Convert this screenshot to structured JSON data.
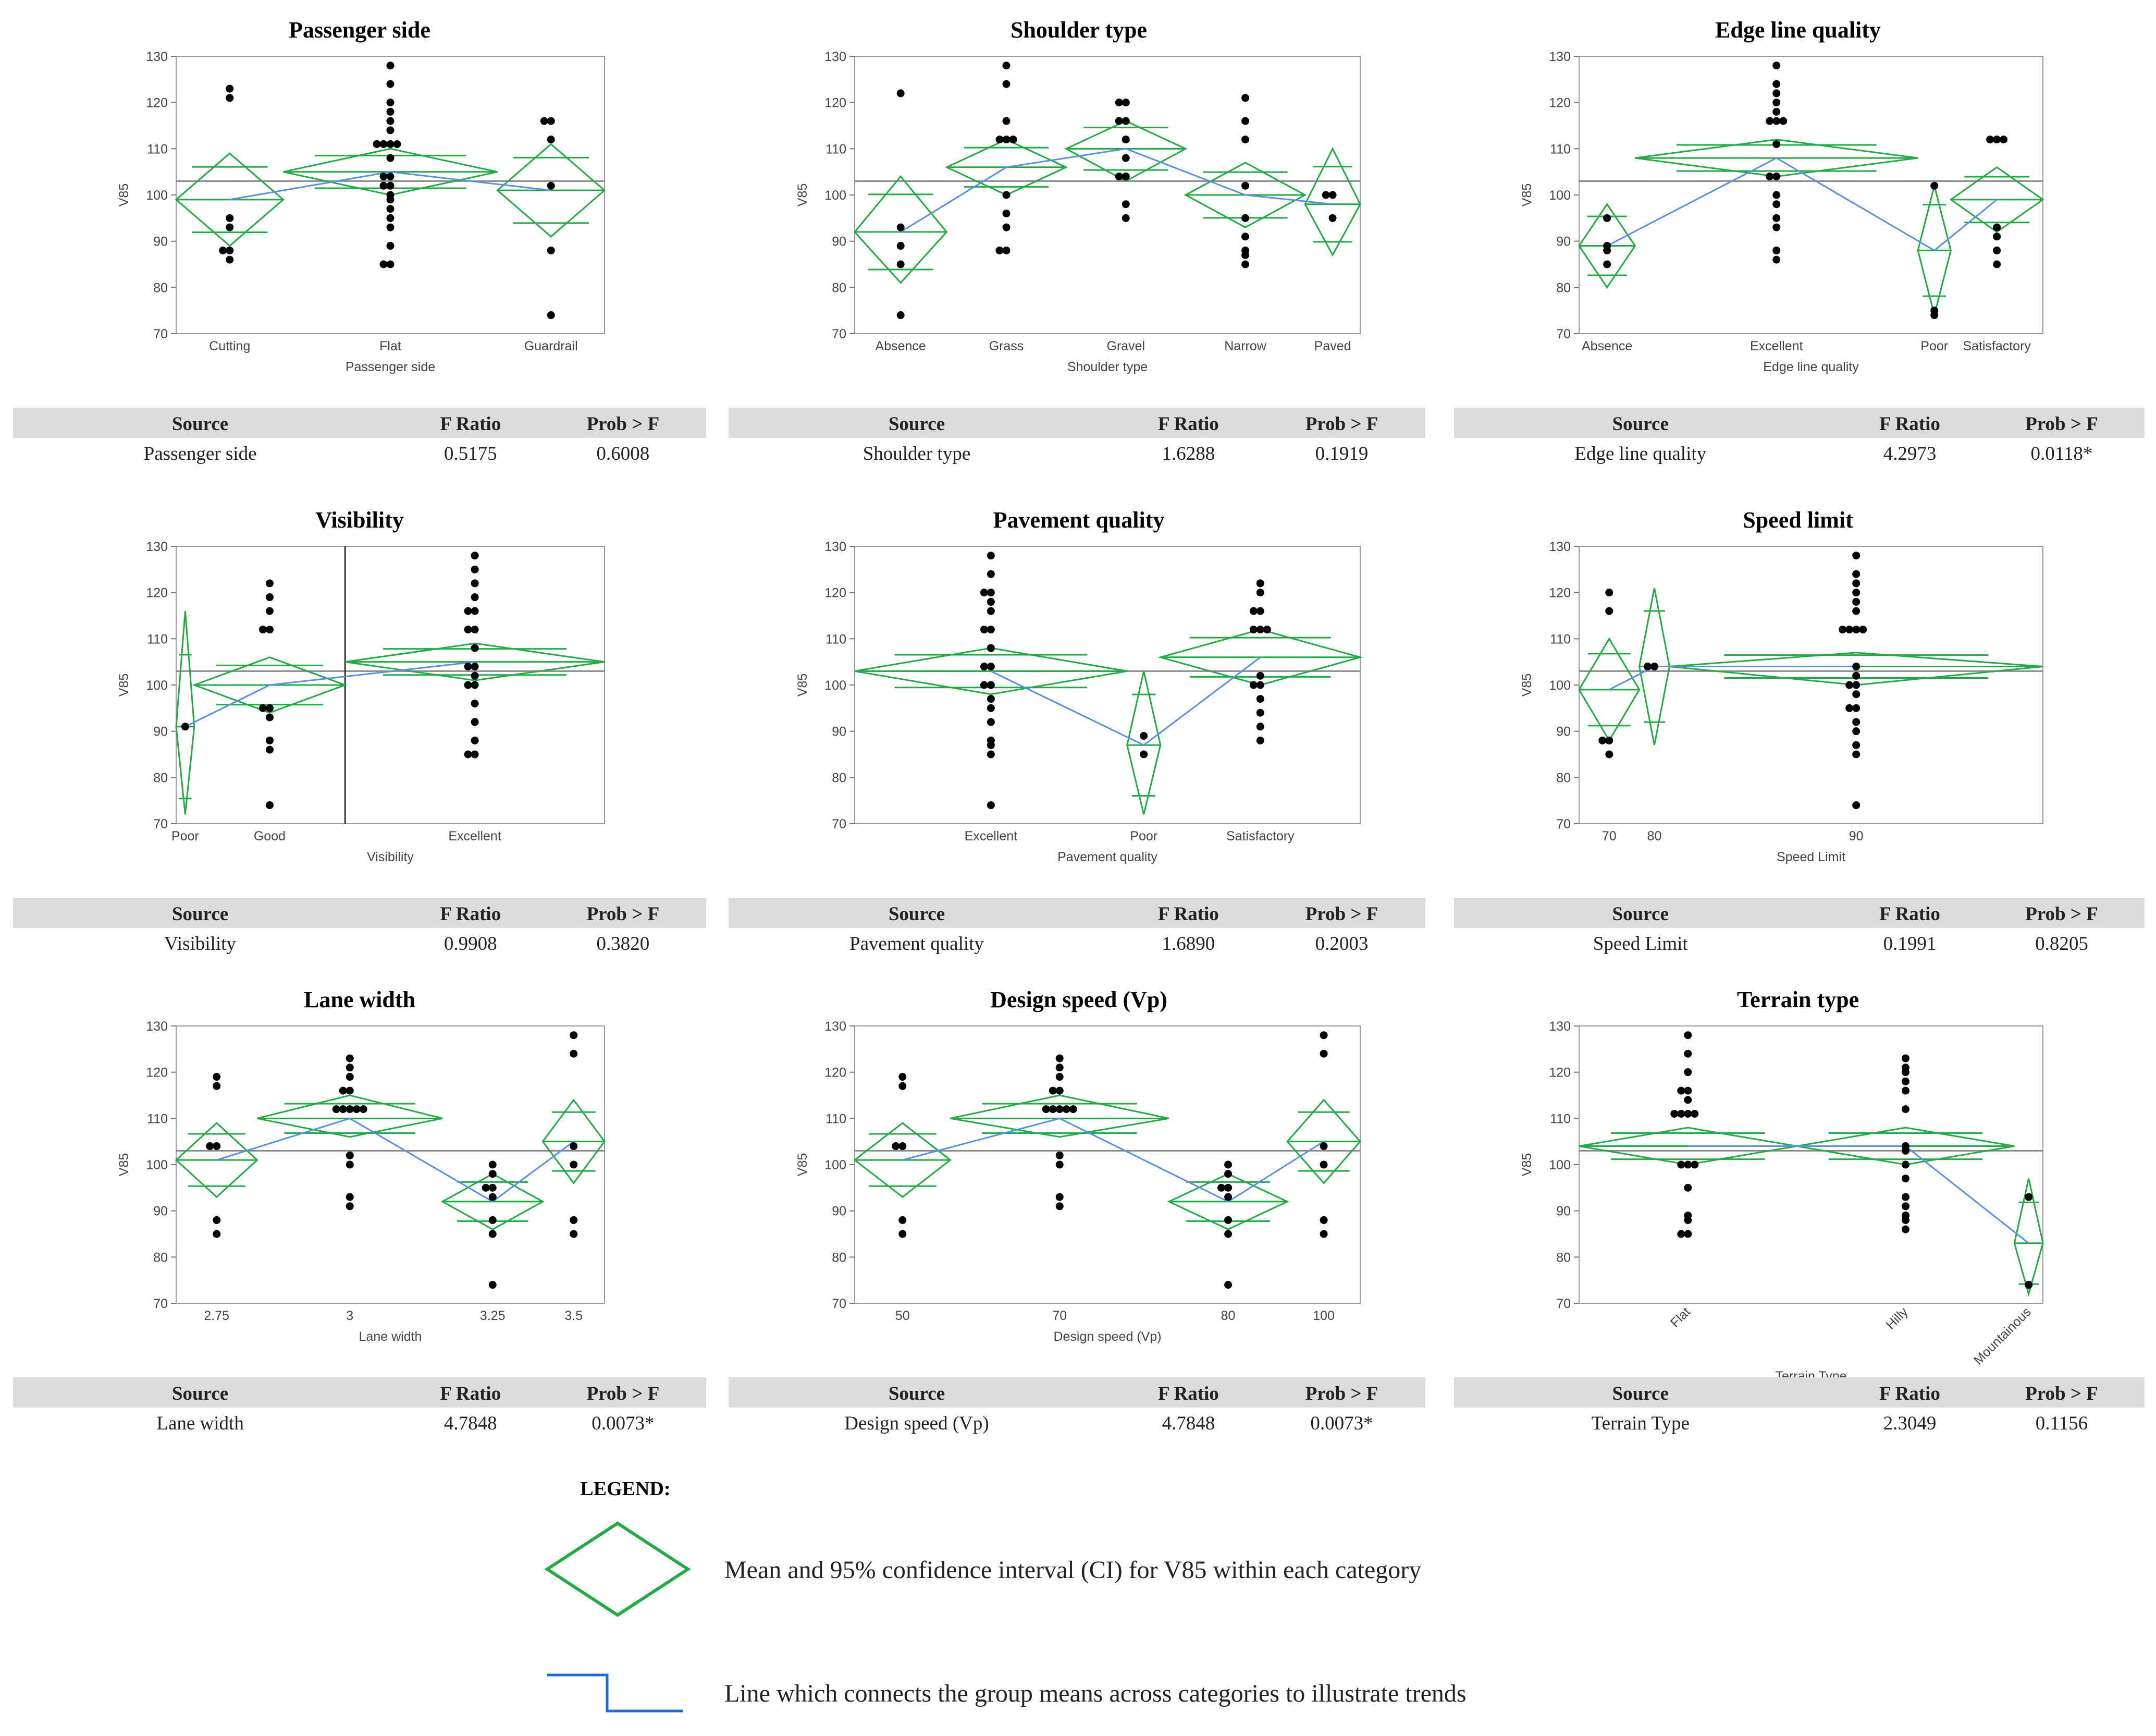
{
  "y_axis_label": "V85",
  "grand_mean": 103,
  "colors": {
    "diamond": "#22aa44",
    "means_line": "#5b8fe0",
    "points": "#000000",
    "grand_mean": "#888888",
    "header_bg": "#dcdcdc",
    "significant_red": "#e0201f",
    "significant_orange": "#f3a019"
  },
  "table_headers": {
    "source": "Source",
    "f_ratio": "F Ratio",
    "prob": "Prob > F"
  },
  "legend": {
    "title": "LEGEND:",
    "diamond_text": "Mean and 95% confidence interval (CI) for V85 within each category",
    "line_text": "Line which connects the group means across categories to illustrate trends"
  },
  "chart_data": [
    {
      "type": "oneway",
      "title": "Passenger side",
      "xlabel": "Passenger side",
      "ylabel": "V85",
      "ylim": [
        70,
        130
      ],
      "yticks": [
        70,
        80,
        90,
        100,
        110,
        120,
        130
      ],
      "weights": [
        1,
        2,
        1
      ],
      "categories": [
        {
          "label": "Cutting",
          "mean": 99,
          "ci": [
            89,
            109
          ],
          "points": [
            86,
            88,
            88,
            93,
            95,
            121,
            123
          ]
        },
        {
          "label": "Flat",
          "mean": 105,
          "ci": [
            100,
            110
          ],
          "points": [
            85,
            85,
            89,
            93,
            95,
            97,
            99,
            100,
            102,
            102,
            104,
            104,
            108,
            111,
            111,
            111,
            111,
            114,
            116,
            118,
            120,
            124,
            128
          ]
        },
        {
          "label": "Guardrail",
          "mean": 101,
          "ci": [
            91,
            111
          ],
          "points": [
            74,
            88,
            102,
            112,
            116,
            116
          ]
        }
      ],
      "table": {
        "source": "Passenger side",
        "f_ratio": "0.5175",
        "prob": "0.6008",
        "sig": ""
      }
    },
    {
      "type": "oneway",
      "title": "Shoulder type",
      "xlabel": "Shoulder type",
      "ylabel": "V85",
      "ylim": [
        70,
        130
      ],
      "yticks": [
        70,
        80,
        90,
        100,
        110,
        120,
        130
      ],
      "weights": [
        1,
        1.3,
        1.3,
        1.3,
        0.6
      ],
      "categories": [
        {
          "label": "Absence",
          "mean": 92,
          "ci": [
            81,
            104
          ],
          "points": [
            74,
            85,
            89,
            93,
            122
          ]
        },
        {
          "label": "Grass",
          "mean": 106,
          "ci": [
            100,
            112
          ],
          "points": [
            88,
            88,
            93,
            96,
            100,
            112,
            112,
            112,
            116,
            124,
            128
          ]
        },
        {
          "label": "Gravel",
          "mean": 110,
          "ci": [
            103,
            116
          ],
          "points": [
            95,
            98,
            104,
            104,
            108,
            112,
            116,
            116,
            120,
            120
          ]
        },
        {
          "label": "Narrow",
          "mean": 100,
          "ci": [
            93,
            107
          ],
          "points": [
            85,
            87,
            88,
            91,
            95,
            102,
            112,
            116,
            121
          ]
        },
        {
          "label": "Paved",
          "mean": 98,
          "ci": [
            87,
            110
          ],
          "points": [
            95,
            100,
            100
          ]
        }
      ],
      "table": {
        "source": "Shoulder type",
        "f_ratio": "1.6288",
        "prob": "0.1919",
        "sig": ""
      }
    },
    {
      "type": "oneway",
      "title": "Edge line quality",
      "xlabel": "Edge line quality",
      "ylabel": "V85",
      "ylim": [
        70,
        130
      ],
      "yticks": [
        70,
        80,
        90,
        100,
        110,
        120,
        130
      ],
      "weights": [
        0.85,
        4.3,
        0.5,
        1.4
      ],
      "categories": [
        {
          "label": "Absence",
          "mean": 89,
          "ci": [
            80,
            98
          ],
          "points": [
            85,
            88,
            89,
            95
          ]
        },
        {
          "label": "Excellent",
          "mean": 108,
          "ci": [
            104,
            112
          ],
          "points": [
            86,
            88,
            93,
            95,
            98,
            100,
            104,
            104,
            111,
            116,
            116,
            116,
            118,
            120,
            122,
            124,
            128
          ]
        },
        {
          "label": "Poor",
          "mean": 88,
          "ci": [
            74,
            102
          ],
          "points": [
            74,
            75,
            102
          ]
        },
        {
          "label": "Satisfactory",
          "mean": 99,
          "ci": [
            92,
            106
          ],
          "points": [
            85,
            88,
            91,
            93,
            112,
            112,
            112
          ]
        }
      ],
      "table": {
        "source": "Edge line quality",
        "f_ratio": "4.2973",
        "prob": "0.0118*",
        "sig": "red"
      }
    },
    {
      "type": "oneway",
      "title": "Visibility",
      "xlabel": "Visibility",
      "ylabel": "V85",
      "ylim": [
        70,
        130
      ],
      "yticks": [
        70,
        80,
        90,
        100,
        110,
        120,
        130
      ],
      "weights": [
        0.3,
        2.5,
        4.3
      ],
      "divider": 2,
      "categories": [
        {
          "label": "Poor",
          "mean": 91,
          "ci": [
            72,
            116
          ],
          "points": [
            91
          ]
        },
        {
          "label": "Good",
          "mean": 100,
          "ci": [
            94,
            106
          ],
          "points": [
            74,
            86,
            88,
            93,
            95,
            95,
            112,
            112,
            116,
            119,
            122
          ]
        },
        {
          "label": "Excellent",
          "mean": 105,
          "ci": [
            101,
            109
          ],
          "points": [
            85,
            85,
            88,
            92,
            96,
            100,
            100,
            102,
            104,
            104,
            108,
            112,
            112,
            116,
            116,
            119,
            122,
            125,
            128
          ]
        }
      ],
      "table": {
        "source": "Visibility",
        "f_ratio": "0.9908",
        "prob": "0.3820",
        "sig": ""
      }
    },
    {
      "type": "oneway",
      "title": "Pavement quality",
      "xlabel": "Pavement quality",
      "ylabel": "V85",
      "ylim": [
        70,
        130
      ],
      "yticks": [
        70,
        80,
        90,
        100,
        110,
        120,
        130
      ],
      "weights": [
        4.5,
        0.55,
        3.3
      ],
      "categories": [
        {
          "label": "Excellent",
          "mean": 103,
          "ci": [
            98,
            108
          ],
          "points": [
            74,
            85,
            87,
            88,
            92,
            95,
            97,
            100,
            100,
            104,
            104,
            108,
            112,
            112,
            116,
            118,
            120,
            120,
            124,
            128
          ]
        },
        {
          "label": "Poor",
          "mean": 87,
          "ci": [
            72,
            103
          ],
          "points": [
            85,
            89
          ]
        },
        {
          "label": "Satisfactory",
          "mean": 106,
          "ci": [
            100,
            112
          ],
          "points": [
            88,
            91,
            94,
            97,
            100,
            100,
            102,
            112,
            112,
            112,
            116,
            116,
            120,
            122
          ]
        }
      ],
      "table": {
        "source": "Pavement quality",
        "f_ratio": "1.6890",
        "prob": "0.2003",
        "sig": ""
      }
    },
    {
      "type": "oneway",
      "title": "Speed limit",
      "xlabel": "Speed Limit",
      "ylabel": "V85",
      "ylim": [
        70,
        130
      ],
      "yticks": [
        70,
        80,
        90,
        100,
        110,
        120,
        130
      ],
      "weights": [
        1,
        0.5,
        6.2
      ],
      "categories": [
        {
          "label": "70",
          "mean": 99,
          "ci": [
            88,
            110
          ],
          "points": [
            85,
            88,
            88,
            116,
            120
          ]
        },
        {
          "label": "80",
          "mean": 104,
          "ci": [
            87,
            121
          ],
          "points": [
            104,
            104
          ]
        },
        {
          "label": "90",
          "mean": 104,
          "ci": [
            100,
            107
          ],
          "points": [
            74,
            85,
            87,
            90,
            92,
            95,
            95,
            98,
            100,
            100,
            102,
            104,
            112,
            112,
            112,
            112,
            116,
            118,
            120,
            122,
            124,
            128
          ]
        }
      ],
      "table": {
        "source": "Speed Limit",
        "f_ratio": "0.1991",
        "prob": "0.8205",
        "sig": ""
      }
    },
    {
      "type": "oneway",
      "title": "Lane width",
      "xlabel": "Lane width",
      "ylabel": "V85",
      "ylim": [
        70,
        130
      ],
      "yticks": [
        70,
        80,
        90,
        100,
        110,
        120,
        130
      ],
      "weights": [
        1.05,
        2.4,
        1.3,
        0.8
      ],
      "categories": [
        {
          "label": "2.75",
          "mean": 101,
          "ci": [
            93,
            109
          ],
          "points": [
            85,
            88,
            104,
            104,
            117,
            119
          ]
        },
        {
          "label": "3",
          "mean": 110,
          "ci": [
            106,
            115
          ],
          "points": [
            91,
            93,
            100,
            102,
            112,
            112,
            112,
            112,
            112,
            116,
            116,
            119,
            121,
            123
          ]
        },
        {
          "label": "3.25",
          "mean": 92,
          "ci": [
            86,
            98
          ],
          "points": [
            74,
            85,
            88,
            93,
            95,
            95,
            98,
            100
          ]
        },
        {
          "label": "3.5",
          "mean": 105,
          "ci": [
            96,
            114
          ],
          "points": [
            85,
            88,
            100,
            104,
            124,
            128
          ]
        }
      ],
      "table": {
        "source": "Lane width",
        "f_ratio": "4.7848",
        "prob": "0.0073*",
        "sig": "orange"
      }
    },
    {
      "type": "oneway",
      "title": "Design speed (Vp)",
      "xlabel": "Design speed (Vp)",
      "ylabel": "V85",
      "ylim": [
        70,
        130
      ],
      "yticks": [
        70,
        80,
        90,
        100,
        110,
        120,
        130
      ],
      "weights": [
        1.05,
        2.4,
        1.3,
        0.8
      ],
      "categories": [
        {
          "label": "50",
          "mean": 101,
          "ci": [
            93,
            109
          ],
          "points": [
            85,
            88,
            104,
            104,
            117,
            119
          ]
        },
        {
          "label": "70",
          "mean": 110,
          "ci": [
            106,
            115
          ],
          "points": [
            91,
            93,
            100,
            102,
            112,
            112,
            112,
            112,
            112,
            116,
            116,
            119,
            121,
            123
          ]
        },
        {
          "label": "80",
          "mean": 92,
          "ci": [
            86,
            98
          ],
          "points": [
            74,
            85,
            88,
            93,
            95,
            95,
            98,
            100
          ]
        },
        {
          "label": "100",
          "mean": 105,
          "ci": [
            96,
            114
          ],
          "points": [
            85,
            88,
            100,
            104,
            124,
            128
          ]
        }
      ],
      "table": {
        "source": "Design speed (Vp)",
        "f_ratio": "4.7848",
        "prob": "0.0073*",
        "sig": "orange"
      }
    },
    {
      "type": "oneway",
      "title": "Terrain type",
      "xlabel": "Terrain Type",
      "ylabel": "V85",
      "ylim": [
        70,
        130
      ],
      "yticks": [
        70,
        80,
        90,
        100,
        110,
        120,
        130
      ],
      "weights": [
        4.2,
        4.2,
        0.55
      ],
      "rotated_labels": true,
      "categories": [
        {
          "label": "Flat",
          "mean": 104,
          "ci": [
            100,
            108
          ],
          "points": [
            85,
            85,
            88,
            89,
            95,
            100,
            100,
            100,
            111,
            111,
            111,
            111,
            114,
            116,
            116,
            120,
            124,
            128
          ]
        },
        {
          "label": "Hilly",
          "mean": 104,
          "ci": [
            100,
            108
          ],
          "points": [
            86,
            88,
            89,
            91,
            93,
            97,
            100,
            103,
            104,
            112,
            116,
            118,
            120,
            121,
            123
          ]
        },
        {
          "label": "Mountainous",
          "mean": 83,
          "ci": [
            72,
            97
          ],
          "points": [
            74,
            93
          ]
        }
      ],
      "table": {
        "source": "Terrain Type",
        "f_ratio": "2.3049",
        "prob": "0.1156",
        "sig": ""
      }
    }
  ]
}
